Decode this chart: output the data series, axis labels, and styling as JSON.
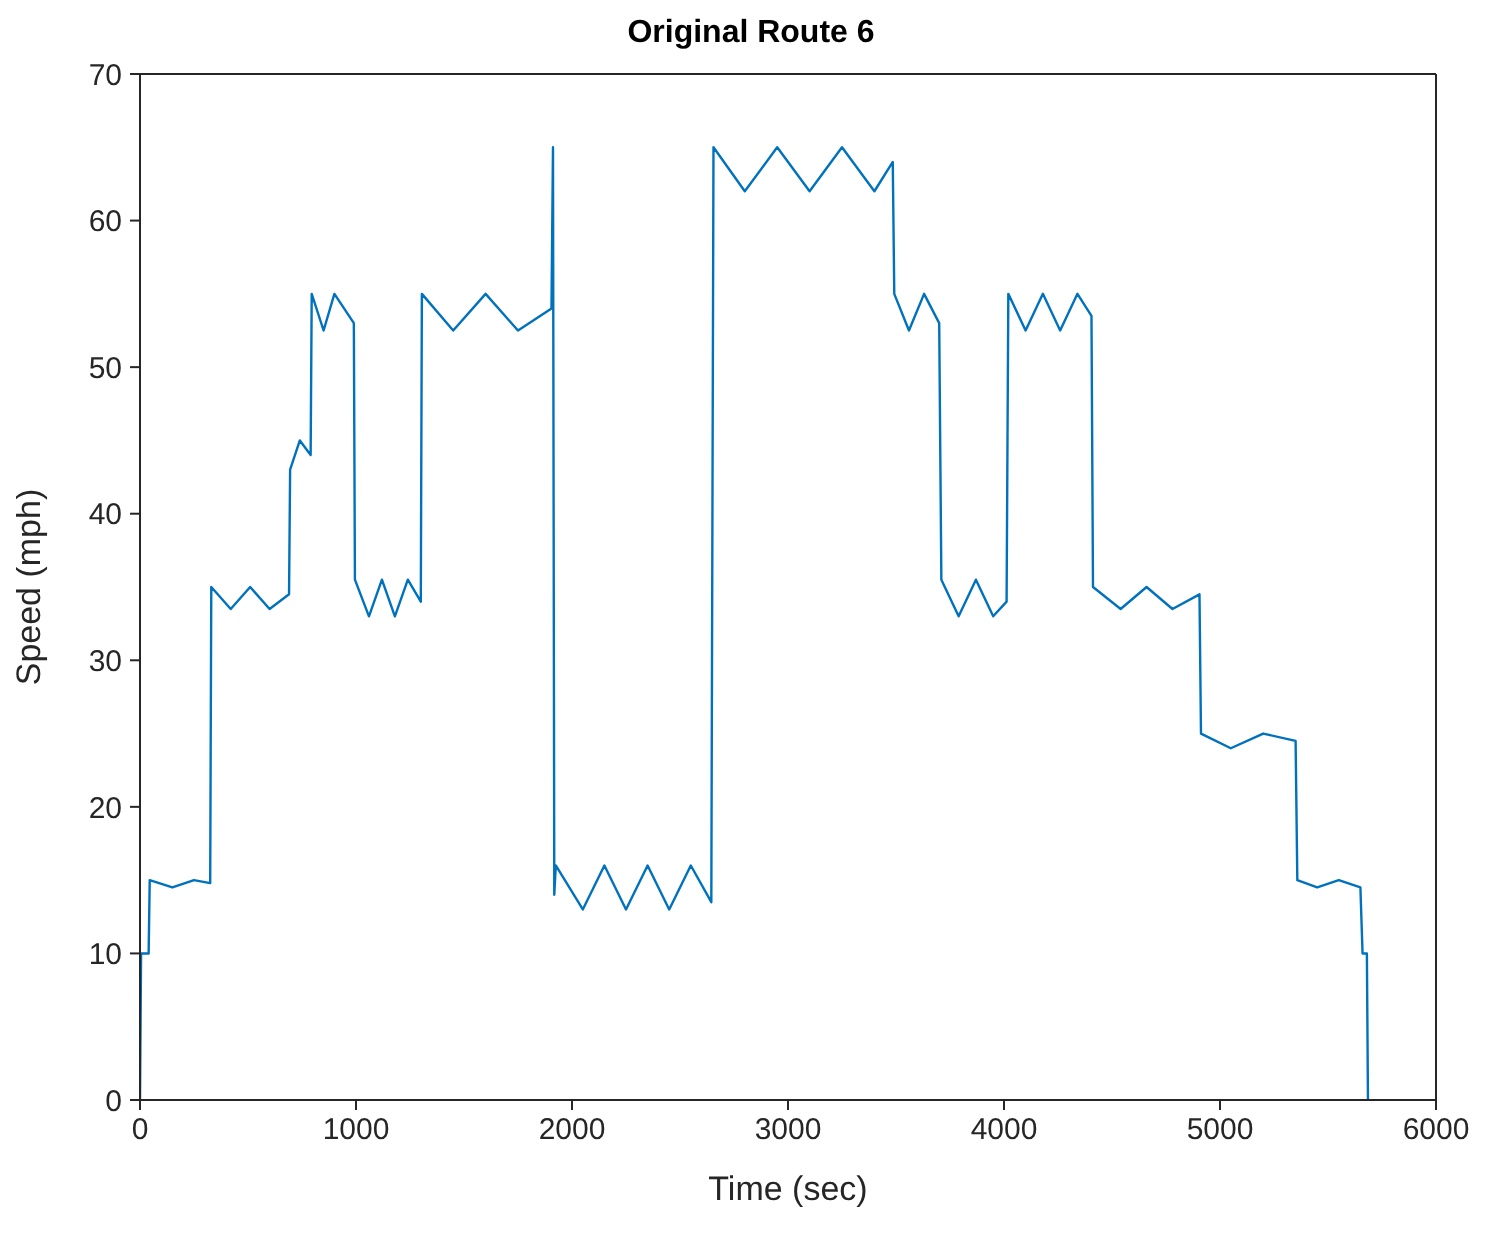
{
  "chart_data": {
    "type": "line",
    "title": "Original Route 6",
    "xlabel": "Time (sec)",
    "ylabel": "Speed (mph)",
    "x": [
      0,
      5,
      40,
      45,
      150,
      250,
      325,
      330,
      420,
      510,
      600,
      690,
      695,
      740,
      790,
      795,
      850,
      900,
      990,
      995,
      1060,
      1120,
      1180,
      1240,
      1300,
      1305,
      1450,
      1600,
      1750,
      1905,
      1912,
      1918,
      1925,
      2050,
      2150,
      2250,
      2350,
      2450,
      2550,
      2645,
      2655,
      2800,
      2950,
      3100,
      3250,
      3400,
      3485,
      3492,
      3560,
      3630,
      3700,
      3710,
      3790,
      3870,
      3950,
      4012,
      4020,
      4100,
      4180,
      4260,
      4340,
      4405,
      4412,
      4540,
      4660,
      4780,
      4905,
      4912,
      5050,
      5200,
      5350,
      5358,
      5450,
      5550,
      5650,
      5660,
      5680,
      5685
    ],
    "series": [
      {
        "color": "#0072bd",
        "values": [
          0,
          10,
          10,
          15,
          14.5,
          15,
          14.8,
          35,
          33.5,
          35,
          33.5,
          34.5,
          43,
          45,
          44,
          55,
          52.5,
          55,
          53,
          35.5,
          33,
          35.5,
          33,
          35.5,
          34,
          55,
          52.5,
          55,
          52.5,
          54,
          65,
          14,
          16,
          13,
          16,
          13,
          16,
          13,
          16,
          13.5,
          65,
          62,
          65,
          62,
          65,
          62,
          64,
          55,
          52.5,
          55,
          53,
          35.5,
          33,
          35.5,
          33,
          34,
          55,
          52.5,
          55,
          52.5,
          55,
          53.5,
          35,
          33.5,
          35,
          33.5,
          34.5,
          25,
          24,
          25,
          24.5,
          15,
          14.5,
          15,
          14.5,
          10,
          10,
          0
        ]
      }
    ],
    "xlim": [
      0,
      6000
    ],
    "xticks": [
      0,
      1000,
      2000,
      3000,
      4000,
      5000,
      6000
    ],
    "ylim": [
      0,
      70
    ],
    "yticks": [
      0,
      10,
      20,
      30,
      40,
      50,
      60,
      70
    ]
  }
}
